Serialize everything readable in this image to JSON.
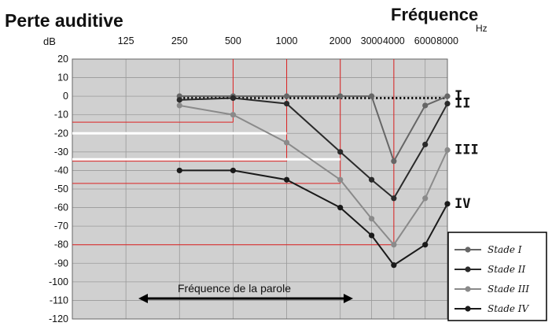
{
  "chart_data": {
    "type": "line",
    "title": "Perte auditive",
    "x_title": "Fréquence",
    "x_unit": "Hz",
    "y_unit": "dB",
    "x": [
      250,
      500,
      1000,
      2000,
      3000,
      4000,
      6000,
      8000
    ],
    "x_ticks": [
      "125",
      "250",
      "500",
      "1000",
      "2000",
      "3000",
      "4000",
      "6000",
      "8000"
    ],
    "y_ticks": [
      "20",
      "10",
      "0",
      "-10",
      "-20",
      "-30",
      "-40",
      "-50",
      "-60",
      "-70",
      "-80",
      "-90",
      "-100",
      "-110",
      "-120"
    ],
    "ylim": [
      -120,
      20
    ],
    "x_scale": "log",
    "grid": true,
    "legend_position": "bottom-right",
    "series": [
      {
        "name": "Stade I",
        "stage_label": "I",
        "color": "#666666",
        "values": [
          0,
          0,
          0,
          0,
          0,
          -35,
          -5,
          0
        ],
        "dotted_values": [
          -1,
          -1,
          -1,
          -1,
          -1,
          -1,
          -1,
          -1
        ]
      },
      {
        "name": "Stade II",
        "stage_label": "II",
        "color": "#2a2a2a",
        "values": [
          -2,
          -1,
          -4,
          -30,
          -45,
          -55,
          -26,
          -4
        ]
      },
      {
        "name": "Stade III",
        "stage_label": "III",
        "color": "#8a8a8a",
        "values": [
          -5,
          -10,
          -25,
          -45,
          -66,
          -80,
          -55,
          -29
        ]
      },
      {
        "name": "Stade IV",
        "stage_label": "IV",
        "color": "#1a1a1a",
        "values": [
          -40,
          -40,
          -45,
          -60,
          -75,
          -91,
          -80,
          -58
        ]
      }
    ],
    "annotation": "Fréquence de la parole"
  }
}
